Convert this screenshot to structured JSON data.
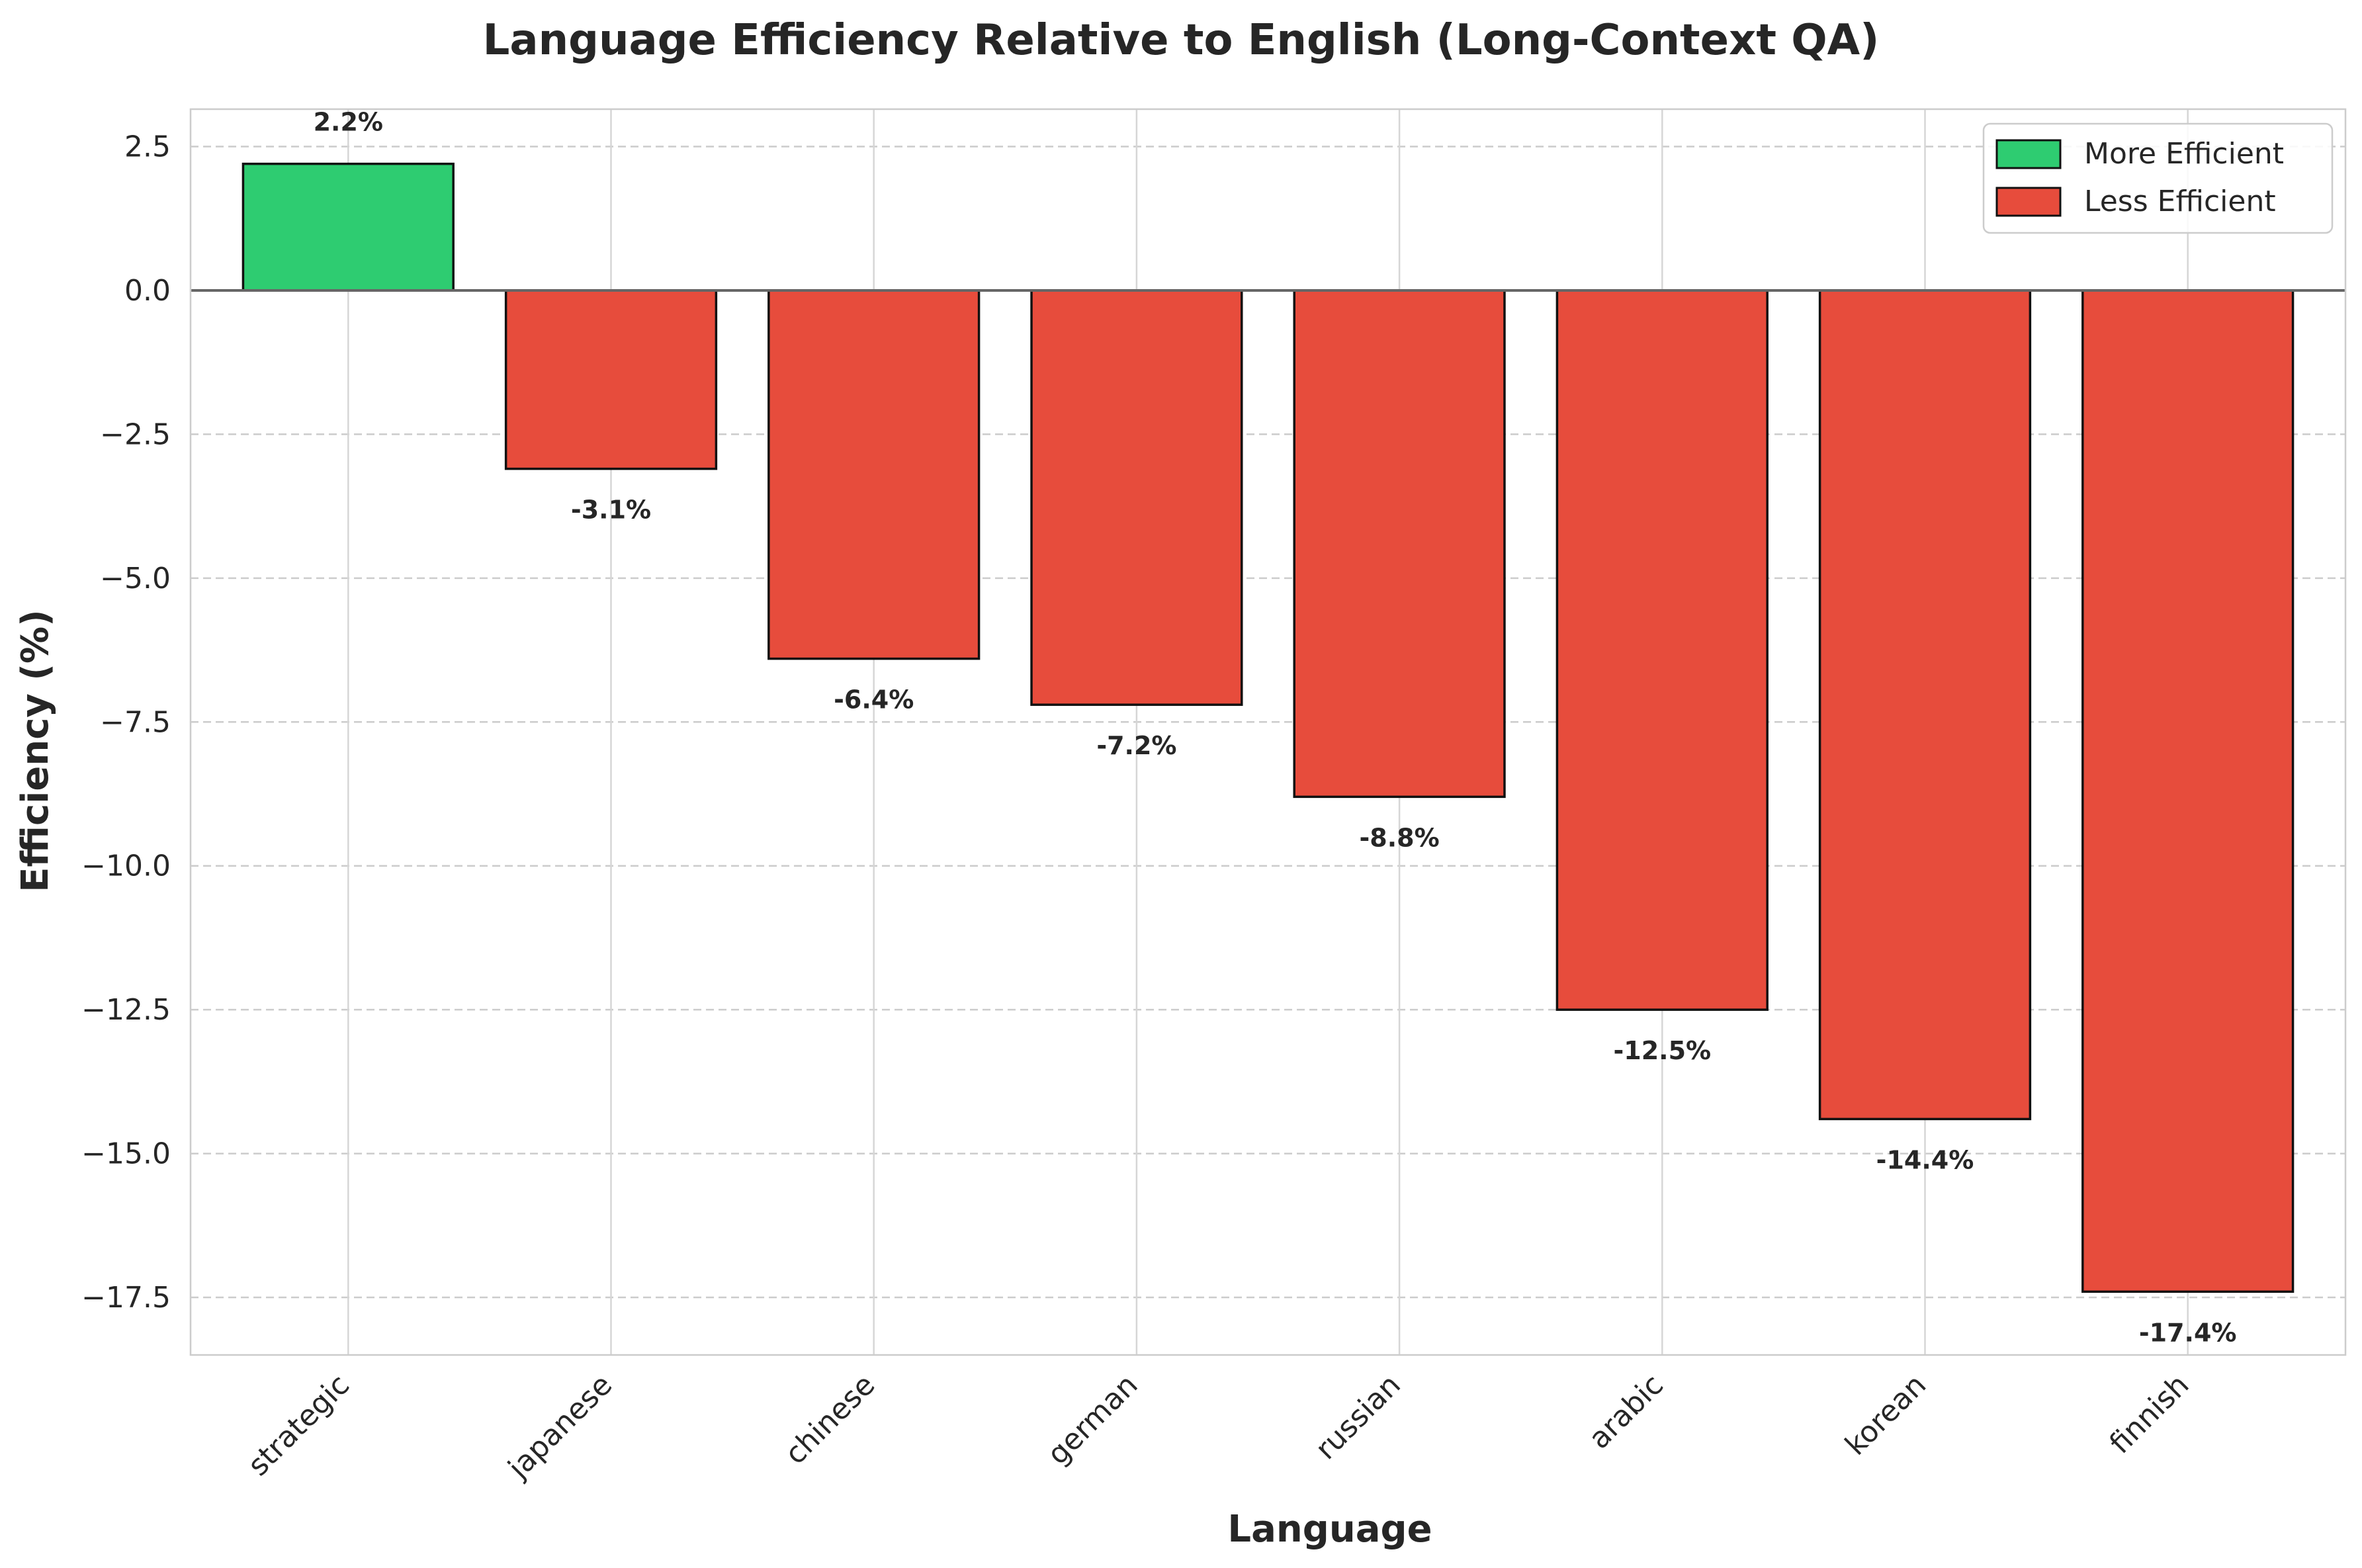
{
  "chart_data": {
    "type": "bar",
    "title": "Language Efficiency Relative to English (Long-Context QA)",
    "xlabel": "Language",
    "ylabel": "Efficiency (%)",
    "categories": [
      "strategic",
      "japanese",
      "chinese",
      "german",
      "russian",
      "arabic",
      "korean",
      "finnish"
    ],
    "values": [
      2.2,
      -3.1,
      -6.4,
      -7.2,
      -8.8,
      -12.5,
      -14.4,
      -17.4
    ],
    "data_labels": [
      "2.2%",
      "-3.1%",
      "-6.4%",
      "-7.2%",
      "-8.8%",
      "-12.5%",
      "-14.4%",
      "-17.4%"
    ],
    "ylim": [
      -18.5,
      3.15
    ],
    "yticks": [
      2.5,
      0.0,
      -2.5,
      -5.0,
      -7.5,
      -10.0,
      -12.5,
      -15.0,
      -17.5
    ],
    "ytick_labels": [
      "2.5",
      "0.0",
      "−2.5",
      "−5.0",
      "−7.5",
      "−10.0",
      "−12.5",
      "−15.0",
      "−17.5"
    ],
    "grid": true,
    "legend_position": "top-right",
    "legend": [
      {
        "label": "More Efficient",
        "color": "#2ecc71"
      },
      {
        "label": "Less Efficient",
        "color": "#e74c3c"
      }
    ],
    "colors": {
      "positive": "#2ecc71",
      "negative": "#e74c3c"
    }
  }
}
